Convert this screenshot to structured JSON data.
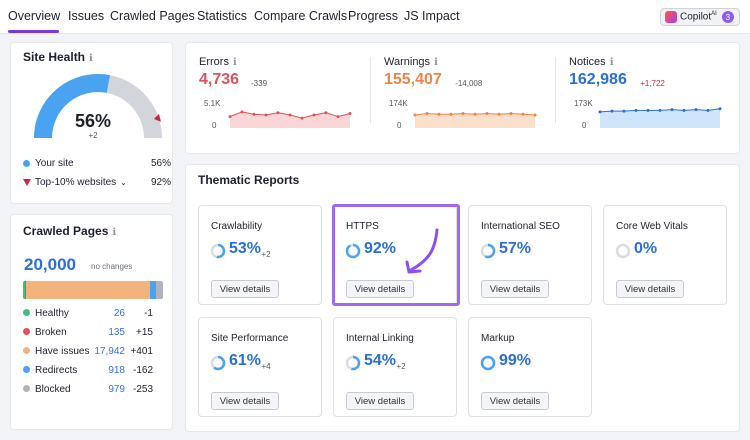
{
  "nav": {
    "tabs": [
      "Overview",
      "Issues",
      "Crawled Pages",
      "Statistics",
      "Compare Crawls",
      "Progress",
      "JS Impact"
    ],
    "active": "Overview",
    "copilot_label": "Copilot",
    "copilot_sup": "AI",
    "copilot_badge": "3"
  },
  "site_health": {
    "title": "Site Health",
    "info_icon": "ℹ",
    "score": "56%",
    "delta": "+2",
    "score_value": 56,
    "top10_value": 92,
    "legend": [
      {
        "label": "Your site",
        "value": "56%",
        "color": "#4aa3f0"
      },
      {
        "label": "Top-10% websites",
        "value": "92%",
        "color": "#c9283f"
      }
    ]
  },
  "crawled_pages": {
    "title": "Crawled Pages",
    "total": "20,000",
    "note": "no changes",
    "rows": [
      {
        "label": "Healthy",
        "value": "26",
        "delta": "-1",
        "color": "#3fbf86",
        "share": 0.0013
      },
      {
        "label": "Broken",
        "value": "135",
        "delta": "+15",
        "color": "#e0525b",
        "share": 0.0068
      },
      {
        "label": "Have issues",
        "value": "17,942",
        "delta": "+401",
        "color": "#f4b27c",
        "share": 0.897
      },
      {
        "label": "Redirects",
        "value": "918",
        "delta": "-162",
        "color": "#4aa3f0",
        "share": 0.0459
      },
      {
        "label": "Blocked",
        "value": "979",
        "delta": "-253",
        "color": "#aeb3bf",
        "share": 0.049
      }
    ]
  },
  "metrics": [
    {
      "label": "Errors",
      "value": "4,736",
      "delta": "-339",
      "color": "#e0525b",
      "ytop": "5.1K",
      "ybottom": "0",
      "fill": "#fbd6d6",
      "series": [
        0.8,
        0.86,
        0.83,
        0.82,
        0.85,
        0.82,
        0.78,
        0.82,
        0.85,
        0.8,
        0.84
      ]
    },
    {
      "label": "Warnings",
      "value": "155,407",
      "delta": "-14,008",
      "color": "#f08445",
      "ytop": "174K",
      "ybottom": "0",
      "fill": "#fde0cc",
      "series": [
        0.82,
        0.84,
        0.83,
        0.83,
        0.84,
        0.83,
        0.84,
        0.83,
        0.84,
        0.83,
        0.82
      ]
    },
    {
      "label": "Notices",
      "value": "162,986",
      "delta": "+1,722",
      "color": "#2b6fd6",
      "ytop": "173K",
      "ybottom": "0",
      "fill": "#cfe5fb",
      "series": [
        0.86,
        0.87,
        0.87,
        0.88,
        0.88,
        0.88,
        0.89,
        0.88,
        0.89,
        0.88,
        0.9
      ]
    }
  ],
  "thematic": {
    "title": "Thematic Reports",
    "button_label": "View details",
    "reports": [
      {
        "name": "Crawlability",
        "pct": "53%",
        "delta": "+2",
        "value": 53
      },
      {
        "name": "HTTPS",
        "pct": "92%",
        "delta": "",
        "value": 92
      },
      {
        "name": "International SEO",
        "pct": "57%",
        "delta": "",
        "value": 57
      },
      {
        "name": "Core Web Vitals",
        "pct": "0%",
        "delta": "",
        "value": 0
      },
      {
        "name": "Site Performance",
        "pct": "61%",
        "delta": "+4",
        "value": 61
      },
      {
        "name": "Internal Linking",
        "pct": "54%",
        "delta": "+2",
        "value": 54
      },
      {
        "name": "Markup",
        "pct": "99%",
        "delta": "",
        "value": 99
      }
    ]
  }
}
